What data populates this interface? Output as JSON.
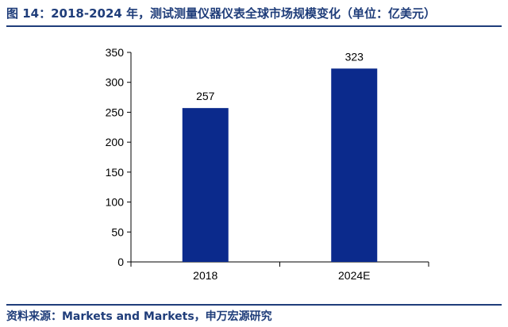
{
  "figure": {
    "title": "图 14：2018-2024 年，测试测量仪器仪表全球市场规模变化（单位：亿美元）",
    "source": "资料来源：Markets and Markets，申万宏源研究"
  },
  "colors": {
    "bar": "#0b2a8c",
    "title": "#1f3d7a",
    "axis": "#000000"
  },
  "chart_data": {
    "type": "bar",
    "title": "图 14：2018-2024 年，测试测量仪器仪表全球市场规模变化（单位：亿美元）",
    "categories": [
      "2018",
      "2024E"
    ],
    "values": [
      257,
      323
    ],
    "data_labels": [
      "257",
      "323"
    ],
    "ylim": [
      0,
      350
    ],
    "yticks": [
      0,
      50,
      100,
      150,
      200,
      250,
      300,
      350
    ],
    "xlabel": "",
    "ylabel": "",
    "grid": false,
    "legend": "none"
  }
}
